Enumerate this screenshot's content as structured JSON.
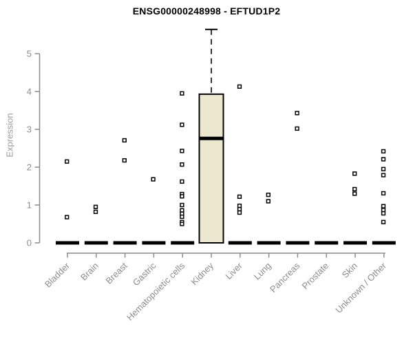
{
  "header": {
    "title": "ENSG00000248998 - EFTUD1P2"
  },
  "chart_data": {
    "type": "box",
    "title": "ENSG00000248998 - EFTUD1P2",
    "xlabel": "",
    "ylabel": "Expression",
    "ylim": [
      0,
      5.75
    ],
    "yticks": [
      0,
      1,
      2,
      3,
      4,
      5
    ],
    "grid": false,
    "legend": false,
    "point_style": "open-square",
    "categories": [
      "Bladder",
      "Brain",
      "Breast",
      "Gastric",
      "Hematopoietic cells",
      "Kidney",
      "Liver",
      "Lung",
      "Pancreas",
      "Prostate",
      "Skin",
      "Unknown / Other"
    ],
    "series": [
      {
        "category": "Bladder",
        "box": {
          "whisker_low": 0,
          "q1": 0,
          "median": 0,
          "q3": 0,
          "whisker_high": 0
        },
        "outliers": [
          2.15,
          0.68
        ]
      },
      {
        "category": "Brain",
        "box": {
          "whisker_low": 0,
          "q1": 0,
          "median": 0,
          "q3": 0,
          "whisker_high": 0
        },
        "outliers": [
          0.95,
          0.82
        ]
      },
      {
        "category": "Breast",
        "box": {
          "whisker_low": 0,
          "q1": 0,
          "median": 0,
          "q3": 0,
          "whisker_high": 0
        },
        "outliers": [
          2.71,
          2.18
        ]
      },
      {
        "category": "Gastric",
        "box": {
          "whisker_low": 0,
          "q1": 0,
          "median": 0,
          "q3": 0,
          "whisker_high": 0
        },
        "outliers": [
          1.68
        ]
      },
      {
        "category": "Hematopoietic cells",
        "box": {
          "whisker_low": 0,
          "q1": 0,
          "median": 0,
          "q3": 0,
          "whisker_high": 0
        },
        "outliers": [
          3.95,
          3.12,
          2.43,
          2.07,
          1.62,
          1.29,
          1.23,
          1.0,
          0.86,
          0.77,
          0.69,
          0.55,
          0.5
        ]
      },
      {
        "category": "Kidney",
        "box": {
          "whisker_low": 0,
          "q1": 0,
          "median": 2.76,
          "q3": 3.93,
          "whisker_high": 5.64
        },
        "outliers": []
      },
      {
        "category": "Liver",
        "box": {
          "whisker_low": 0,
          "q1": 0,
          "median": 0,
          "q3": 0,
          "whisker_high": 0
        },
        "outliers": [
          4.13,
          1.22,
          0.98,
          0.89,
          0.8
        ]
      },
      {
        "category": "Lung",
        "box": {
          "whisker_low": 0,
          "q1": 0,
          "median": 0,
          "q3": 0,
          "whisker_high": 0
        },
        "outliers": [
          1.27,
          1.1
        ]
      },
      {
        "category": "Pancreas",
        "box": {
          "whisker_low": 0,
          "q1": 0,
          "median": 0,
          "q3": 0,
          "whisker_high": 0
        },
        "outliers": [
          3.43,
          3.02
        ]
      },
      {
        "category": "Prostate",
        "box": {
          "whisker_low": 0,
          "q1": 0,
          "median": 0,
          "q3": 0,
          "whisker_high": 0
        },
        "outliers": []
      },
      {
        "category": "Skin",
        "box": {
          "whisker_low": 0,
          "q1": 0,
          "median": 0,
          "q3": 0,
          "whisker_high": 0
        },
        "outliers": [
          1.83,
          1.42,
          1.3
        ]
      },
      {
        "category": "Unknown / Other",
        "box": {
          "whisker_low": 0,
          "q1": 0,
          "median": 0,
          "q3": 0,
          "whisker_high": 0
        },
        "outliers": [
          2.42,
          2.21,
          1.95,
          1.79,
          1.31,
          0.97,
          0.87,
          0.78,
          0.55
        ]
      }
    ],
    "colors": {
      "box_fill": "#ece8cf",
      "box_stroke": "#000000",
      "median": "#000000",
      "point_stroke": "#000000",
      "point_fill": "#ffffff",
      "axis": "#8c8c8c",
      "tick_label": "#8c8c8c",
      "axis_title": "#9a9a9a",
      "title": "#000000",
      "background": "#ffffff"
    }
  }
}
